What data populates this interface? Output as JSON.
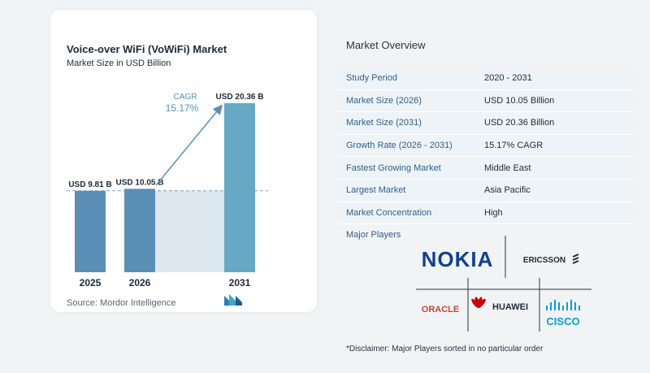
{
  "chart": {
    "title": "Voice-over WiFi (VoWiFi) Market",
    "subtitle": "Market Size in USD Billion",
    "cagr_label": "CAGR",
    "cagr_value": "15.17%",
    "source": "Source:  Mordor Intelligence"
  },
  "chart_data": {
    "type": "bar",
    "categories": [
      "2025",
      "2026",
      "2031"
    ],
    "values": [
      9.81,
      10.05,
      20.36
    ],
    "data_labels": [
      "USD 9.81 B",
      "USD 10.05 B",
      "USD 20.36 B"
    ],
    "colors": [
      "#5b8fb6",
      "#5b8fb6",
      "#67a8c4"
    ],
    "reference_line": 9.81,
    "ylim": [
      0,
      21
    ],
    "grid": false
  },
  "overview": {
    "title": "Market Overview",
    "rows": [
      {
        "key": "Study Period",
        "value": "2020 - 2031"
      },
      {
        "key": "Market Size (2026)",
        "value": "USD 10.05 Billion"
      },
      {
        "key": "Market Size (2031)",
        "value": "USD 20.36 Billion"
      },
      {
        "key": "Growth Rate (2026 - 2031)",
        "value": "15.17% CAGR"
      },
      {
        "key": "Fastest Growing Market",
        "value": "Middle East"
      },
      {
        "key": "Largest Market",
        "value": "Asia Pacific"
      },
      {
        "key": "Market Concentration",
        "value": "High"
      }
    ]
  },
  "players": {
    "title": "Major Players",
    "nokia": "NOKIA",
    "ericsson": "ERICSSON",
    "oracle": "ORACLE",
    "huawei": "HUAWEI",
    "cisco": "CISCO"
  },
  "disclaimer": "*Disclaimer: Major Players sorted in no particular order",
  "colors": {
    "accent": "#2f5f8a",
    "bar": "#5b8fb6",
    "bar_last": "#67a8c4",
    "oracle": "#c74634",
    "huawei": "#c7000b",
    "nokia": "#124191",
    "cisco": "#049fd9"
  }
}
